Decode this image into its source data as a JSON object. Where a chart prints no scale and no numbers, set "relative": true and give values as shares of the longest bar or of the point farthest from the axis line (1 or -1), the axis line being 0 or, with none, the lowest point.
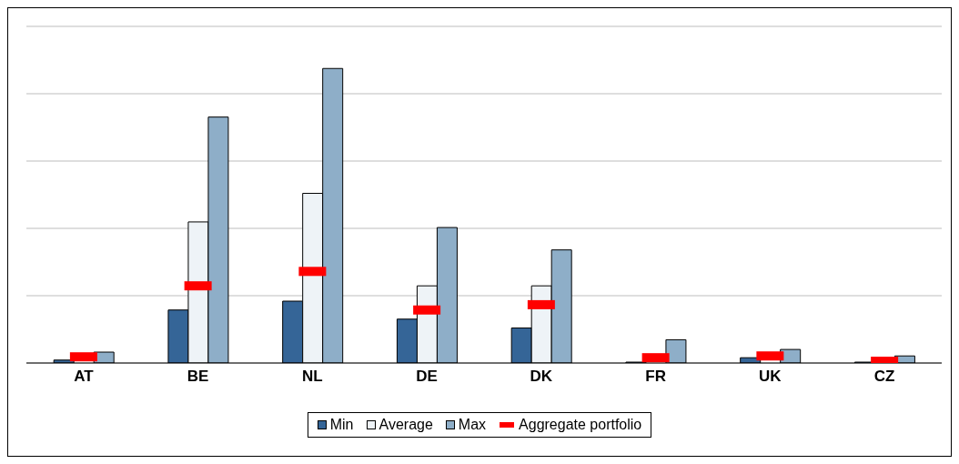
{
  "chart_data": {
    "type": "bar",
    "relative": true,
    "categories": [
      "AT",
      "BE",
      "NL",
      "DE",
      "DK",
      "FR",
      "UK",
      "CZ"
    ],
    "series": [
      {
        "name": "Min",
        "color": "#356597",
        "values": [
          0.01,
          0.18,
          0.21,
          0.149,
          0.119,
          0.003,
          0.018,
          0.003
        ]
      },
      {
        "name": "Average",
        "color": "#eef3f7",
        "values": [
          null,
          0.479,
          0.576,
          0.262,
          0.262,
          null,
          null,
          null
        ]
      },
      {
        "name": "Max",
        "color": "#8eaec8",
        "values": [
          0.037,
          0.835,
          1,
          0.46,
          0.384,
          0.079,
          0.046,
          0.024
        ]
      },
      {
        "name": "Aggregate portfolio",
        "type": "scatter",
        "color": "#ff0000",
        "values": [
          0.021,
          0.262,
          0.311,
          0.18,
          0.198,
          0.018,
          0.024,
          0.006
        ]
      }
    ],
    "grid": "y",
    "legend": "bottom"
  }
}
